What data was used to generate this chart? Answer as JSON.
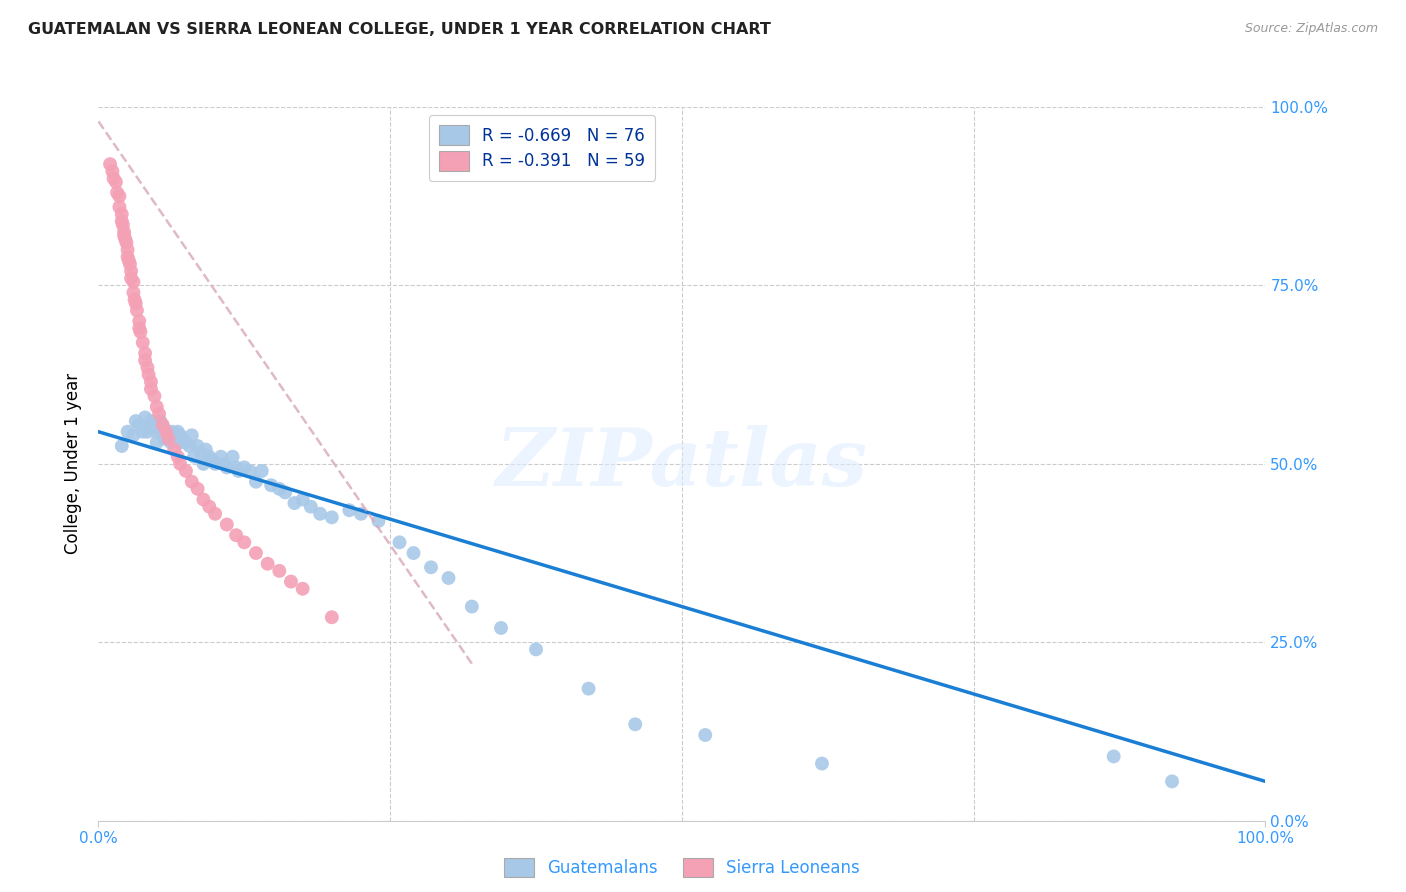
{
  "title": "GUATEMALAN VS SIERRA LEONEAN COLLEGE, UNDER 1 YEAR CORRELATION CHART",
  "source": "Source: ZipAtlas.com",
  "ylabel": "College, Under 1 year",
  "xlim": [
    0.0,
    1.0
  ],
  "ylim": [
    0.0,
    1.0
  ],
  "ytick_labels_right": [
    "100.0%",
    "75.0%",
    "50.0%",
    "25.0%",
    "0.0%"
  ],
  "ytick_values": [
    1.0,
    0.75,
    0.5,
    0.25,
    0.0
  ],
  "xtick_labels": [
    "0.0%",
    "100.0%"
  ],
  "xtick_values": [
    0.0,
    1.0
  ],
  "guatemalan_color": "#a8c8e8",
  "sierra_color": "#f4a0b5",
  "guatemalan_line_color": "#1a7fd4",
  "sierra_line_color": "#e8a0b0",
  "legend_label_guatemalans": "Guatemalans",
  "legend_label_sierra": "Sierra Leoneans",
  "watermark_text": "ZIPatlas",
  "background_color": "#ffffff",
  "grid_color": "#cccccc",
  "R_guatemalan": -0.669,
  "N_guatemalan": 76,
  "R_sierra": -0.391,
  "N_sierra": 59,
  "guatemalan_x": [
    0.02,
    0.025,
    0.03,
    0.032,
    0.035,
    0.038,
    0.04,
    0.042,
    0.043,
    0.045,
    0.047,
    0.048,
    0.05,
    0.05,
    0.052,
    0.053,
    0.055,
    0.055,
    0.056,
    0.057,
    0.058,
    0.06,
    0.06,
    0.062,
    0.063,
    0.065,
    0.067,
    0.068,
    0.07,
    0.07,
    0.072,
    0.075,
    0.078,
    0.08,
    0.082,
    0.085,
    0.088,
    0.09,
    0.092,
    0.095,
    0.098,
    0.1,
    0.105,
    0.108,
    0.11,
    0.115,
    0.118,
    0.12,
    0.125,
    0.13,
    0.135,
    0.14,
    0.148,
    0.155,
    0.16,
    0.168,
    0.175,
    0.182,
    0.19,
    0.2,
    0.215,
    0.225,
    0.24,
    0.258,
    0.27,
    0.285,
    0.3,
    0.32,
    0.345,
    0.375,
    0.42,
    0.46,
    0.52,
    0.62,
    0.87,
    0.92
  ],
  "guatemalan_y": [
    0.525,
    0.545,
    0.54,
    0.56,
    0.555,
    0.545,
    0.565,
    0.545,
    0.555,
    0.56,
    0.55,
    0.555,
    0.545,
    0.53,
    0.555,
    0.56,
    0.54,
    0.545,
    0.55,
    0.535,
    0.545,
    0.54,
    0.535,
    0.53,
    0.545,
    0.54,
    0.535,
    0.545,
    0.53,
    0.54,
    0.535,
    0.53,
    0.525,
    0.54,
    0.51,
    0.525,
    0.515,
    0.5,
    0.52,
    0.51,
    0.505,
    0.5,
    0.51,
    0.5,
    0.495,
    0.51,
    0.495,
    0.49,
    0.495,
    0.49,
    0.475,
    0.49,
    0.47,
    0.465,
    0.46,
    0.445,
    0.45,
    0.44,
    0.43,
    0.425,
    0.435,
    0.43,
    0.42,
    0.39,
    0.375,
    0.355,
    0.34,
    0.3,
    0.27,
    0.24,
    0.185,
    0.135,
    0.12,
    0.08,
    0.09,
    0.055
  ],
  "sierra_x": [
    0.01,
    0.012,
    0.013,
    0.015,
    0.016,
    0.018,
    0.018,
    0.02,
    0.02,
    0.021,
    0.022,
    0.022,
    0.023,
    0.024,
    0.025,
    0.025,
    0.026,
    0.027,
    0.028,
    0.028,
    0.03,
    0.03,
    0.031,
    0.032,
    0.033,
    0.035,
    0.035,
    0.036,
    0.038,
    0.04,
    0.04,
    0.042,
    0.043,
    0.045,
    0.045,
    0.048,
    0.05,
    0.052,
    0.055,
    0.058,
    0.06,
    0.065,
    0.068,
    0.07,
    0.075,
    0.08,
    0.085,
    0.09,
    0.095,
    0.1,
    0.11,
    0.118,
    0.125,
    0.135,
    0.145,
    0.155,
    0.165,
    0.175,
    0.2
  ],
  "sierra_y": [
    0.92,
    0.91,
    0.9,
    0.895,
    0.88,
    0.875,
    0.86,
    0.85,
    0.84,
    0.835,
    0.825,
    0.82,
    0.815,
    0.81,
    0.8,
    0.79,
    0.785,
    0.78,
    0.77,
    0.76,
    0.755,
    0.74,
    0.73,
    0.725,
    0.715,
    0.7,
    0.69,
    0.685,
    0.67,
    0.655,
    0.645,
    0.635,
    0.625,
    0.615,
    0.605,
    0.595,
    0.58,
    0.57,
    0.555,
    0.545,
    0.535,
    0.52,
    0.51,
    0.5,
    0.49,
    0.475,
    0.465,
    0.45,
    0.44,
    0.43,
    0.415,
    0.4,
    0.39,
    0.375,
    0.36,
    0.35,
    0.335,
    0.325,
    0.285
  ],
  "guat_line_x0": 0.0,
  "guat_line_y0": 0.545,
  "guat_line_x1": 1.0,
  "guat_line_y1": 0.055,
  "sierra_line_x0": 0.0,
  "sierra_line_y0": 0.98,
  "sierra_line_x1": 0.32,
  "sierra_line_y1": 0.22
}
